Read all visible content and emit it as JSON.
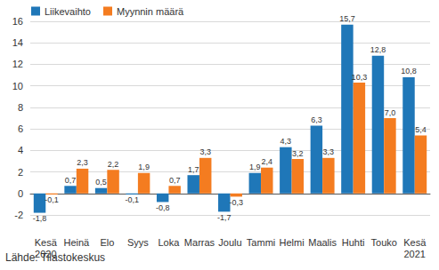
{
  "chart_data": {
    "type": "bar",
    "source": "Lähde: Tilastokeskus",
    "categories": [
      "Kesä\n2020",
      "Heinä",
      "Elo",
      "Syys",
      "Loka",
      "Marras",
      "Joulu",
      "Tammi",
      "Helmi",
      "Maalis",
      "Huhti",
      "Touko",
      "Kesä\n2021"
    ],
    "series": [
      {
        "name": "Liikevaihto",
        "color": "#1f77b8",
        "values": [
          -1.8,
          0.7,
          0.5,
          -0.1,
          -0.8,
          1.7,
          -1.7,
          1.9,
          4.3,
          6.3,
          15.7,
          12.8,
          10.8
        ],
        "value_labels": [
          "-1,8",
          "0,7",
          "0,5",
          "-0,1",
          "-0,8",
          "1,7",
          "-1,7",
          "1,9",
          "4,3",
          "6,3",
          "15,7",
          "12,8",
          "10,8"
        ]
      },
      {
        "name": "Myynnin määrä",
        "color": "#f47c20",
        "values": [
          -0.1,
          2.3,
          2.2,
          1.9,
          0.7,
          3.3,
          -0.3,
          2.4,
          3.2,
          3.3,
          10.3,
          7.0,
          5.4
        ],
        "value_labels": [
          "-0,1",
          "2,3",
          "2,2",
          "1,9",
          "0,7",
          "3,3",
          "-0,3",
          "2,4",
          "3,2",
          "3,3",
          "10,3",
          "7,0",
          "5,4"
        ]
      }
    ],
    "ylim": [
      -2,
      16
    ],
    "yticks": [
      -2,
      0,
      2,
      4,
      6,
      8,
      10,
      12,
      14,
      16
    ],
    "grid": true,
    "legend": "top-left",
    "data_labels": true
  }
}
